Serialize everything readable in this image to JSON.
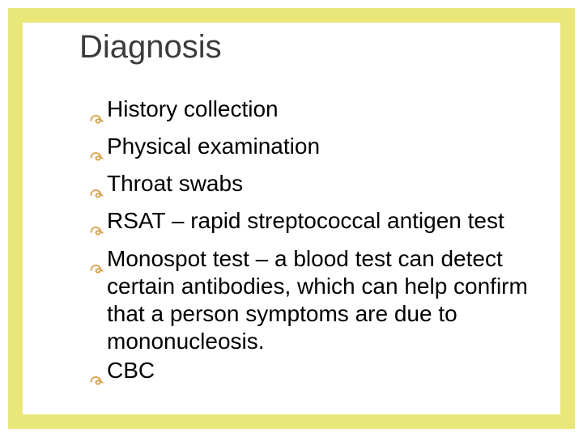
{
  "slide": {
    "background_color": "#ffffff",
    "border_color": "#eae77a",
    "border_width": 18,
    "title": {
      "text": "Diagnosis",
      "font_size": 40,
      "color": "#3b3b3b"
    },
    "bullet": {
      "icon_color": "#d6a24a",
      "icon_name": "curly-arrow",
      "icon_size": 20
    },
    "body": {
      "font_size": 28,
      "color": "#000000",
      "line_height": 1.22
    },
    "items": [
      {
        "text": "History collection"
      },
      {
        "text": "Physical examination"
      },
      {
        "text": "Throat swabs"
      },
      {
        "text": "RSAT – rapid streptococcal antigen test"
      },
      {
        "text": "Monospot test – a blood test can detect certain antibodies, which can help confirm that a person symptoms are due to mononucleosis."
      },
      {
        "text": "CBC"
      }
    ]
  }
}
